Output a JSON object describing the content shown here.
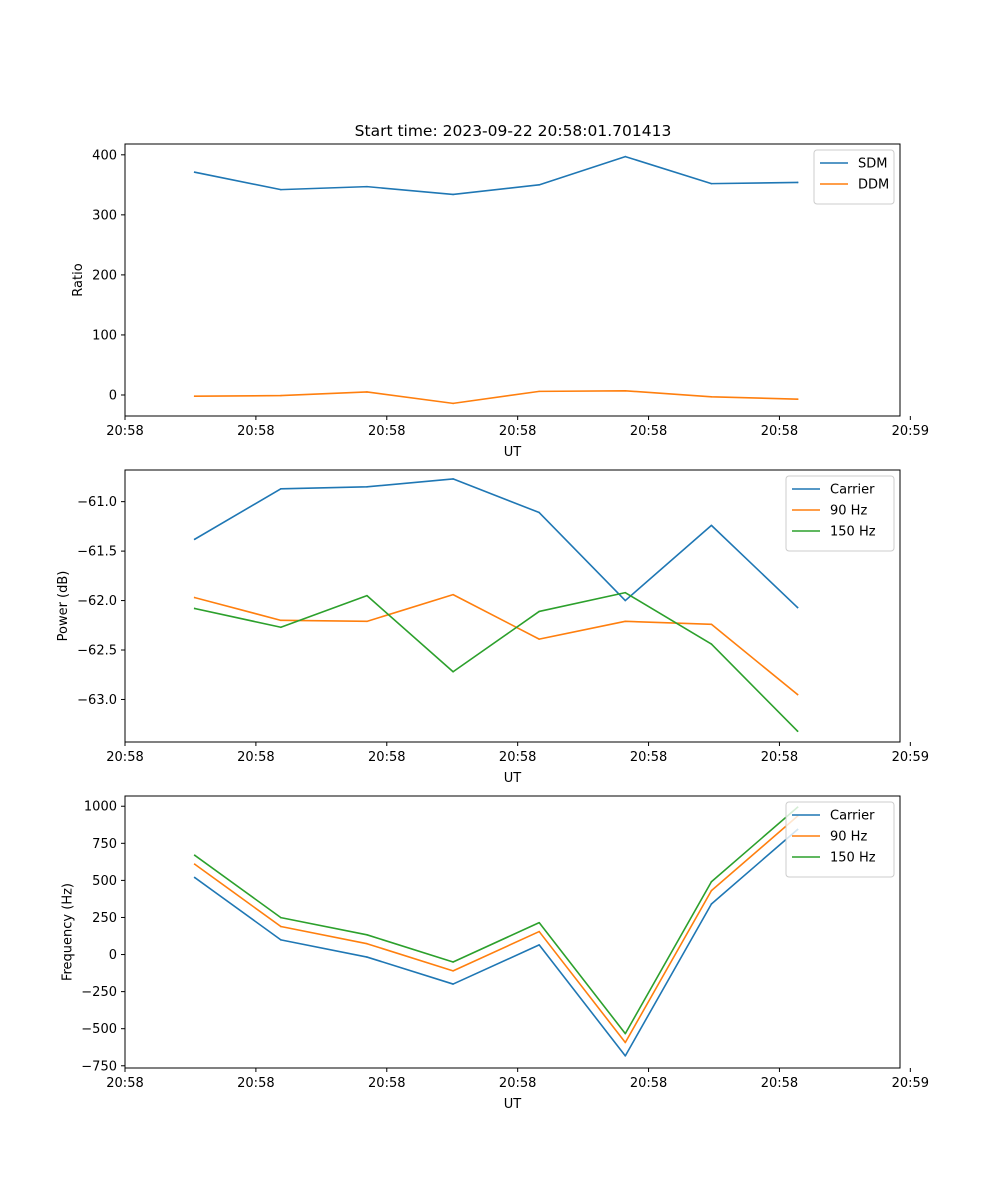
{
  "figure_title": "Start time: 2023-09-22 20:58:01.701413",
  "chart_data": [
    {
      "type": "line",
      "id": "ratio",
      "title": "Start time: 2023-09-22 20:58:01.701413",
      "xlabel": "UT",
      "ylabel": "Ratio",
      "x": [
        1,
        2,
        3,
        4,
        5,
        6,
        7,
        8
      ],
      "xlim": [
        0.19,
        9.19
      ],
      "xticks": [
        0.19,
        1.71,
        3.23,
        4.75,
        6.27,
        7.79,
        9.31
      ],
      "xtick_labels": [
        "20:58",
        "20:58",
        "20:58",
        "20:58",
        "20:58",
        "20:58",
        "20:59"
      ],
      "ylim": [
        -35,
        418
      ],
      "yticks": [
        0,
        100,
        200,
        300,
        400
      ],
      "ytick_labels": [
        "0",
        "100",
        "200",
        "300",
        "400"
      ],
      "legend_position": "top-right",
      "series": [
        {
          "name": "SDM",
          "color": "#1f77b4",
          "values": [
            371,
            342,
            347,
            334,
            350,
            397,
            352,
            354
          ]
        },
        {
          "name": "DDM",
          "color": "#ff7f0e",
          "values": [
            -2,
            -1,
            5,
            -14,
            6,
            7,
            -3,
            -7
          ]
        }
      ]
    },
    {
      "type": "line",
      "id": "power",
      "title": "",
      "xlabel": "UT",
      "ylabel": "Power (dB)",
      "x": [
        1,
        2,
        3,
        4,
        5,
        6,
        7,
        8
      ],
      "xlim": [
        0.19,
        9.19
      ],
      "xticks": [
        0.19,
        1.71,
        3.23,
        4.75,
        6.27,
        7.79,
        9.31
      ],
      "xtick_labels": [
        "20:58",
        "20:58",
        "20:58",
        "20:58",
        "20:58",
        "20:58",
        "20:59"
      ],
      "ylim": [
        -63.43,
        -60.68
      ],
      "yticks": [
        -63.0,
        -62.5,
        -62.0,
        -61.5,
        -61.0
      ],
      "ytick_labels": [
        "−63.0",
        "−62.5",
        "−62.0",
        "−61.5",
        "−61.0"
      ],
      "legend_position": "top-right",
      "series": [
        {
          "name": "Carrier",
          "color": "#1f77b4",
          "values": [
            -61.38,
            -60.87,
            -60.85,
            -60.77,
            -61.11,
            -62.0,
            -61.24,
            -62.07
          ]
        },
        {
          "name": "90 Hz",
          "color": "#ff7f0e",
          "values": [
            -61.97,
            -62.2,
            -62.21,
            -61.94,
            -62.39,
            -62.21,
            -62.24,
            -62.95
          ]
        },
        {
          "name": "150 Hz",
          "color": "#2ca02c",
          "values": [
            -62.08,
            -62.27,
            -61.95,
            -62.72,
            -62.11,
            -61.92,
            -62.44,
            -63.32
          ]
        }
      ]
    },
    {
      "type": "line",
      "id": "frequency",
      "title": "",
      "xlabel": "UT",
      "ylabel": "Frequency (Hz)",
      "x": [
        1,
        2,
        3,
        4,
        5,
        6,
        7,
        8
      ],
      "xlim": [
        0.19,
        9.19
      ],
      "xticks": [
        0.19,
        1.71,
        3.23,
        4.75,
        6.27,
        7.79,
        9.31
      ],
      "xtick_labels": [
        "20:58",
        "20:58",
        "20:58",
        "20:58",
        "20:58",
        "20:58",
        "20:59"
      ],
      "ylim": [
        -765,
        1069
      ],
      "yticks": [
        -750,
        -500,
        -250,
        0,
        250,
        500,
        750,
        1000
      ],
      "ytick_labels": [
        "−750",
        "−500",
        "−250",
        "0",
        "250",
        "500",
        "750",
        "1000"
      ],
      "legend_position": "top-right",
      "series": [
        {
          "name": "Carrier",
          "color": "#1f77b4",
          "values": [
            519,
            99,
            -17,
            -199,
            65,
            -683,
            341,
            843
          ]
        },
        {
          "name": "90 Hz",
          "color": "#ff7f0e",
          "values": [
            609,
            189,
            73,
            -110,
            155,
            -593,
            431,
            933
          ]
        },
        {
          "name": "150 Hz",
          "color": "#2ca02c",
          "values": [
            669,
            249,
            133,
            -50,
            215,
            -533,
            491,
            993
          ]
        }
      ]
    }
  ]
}
